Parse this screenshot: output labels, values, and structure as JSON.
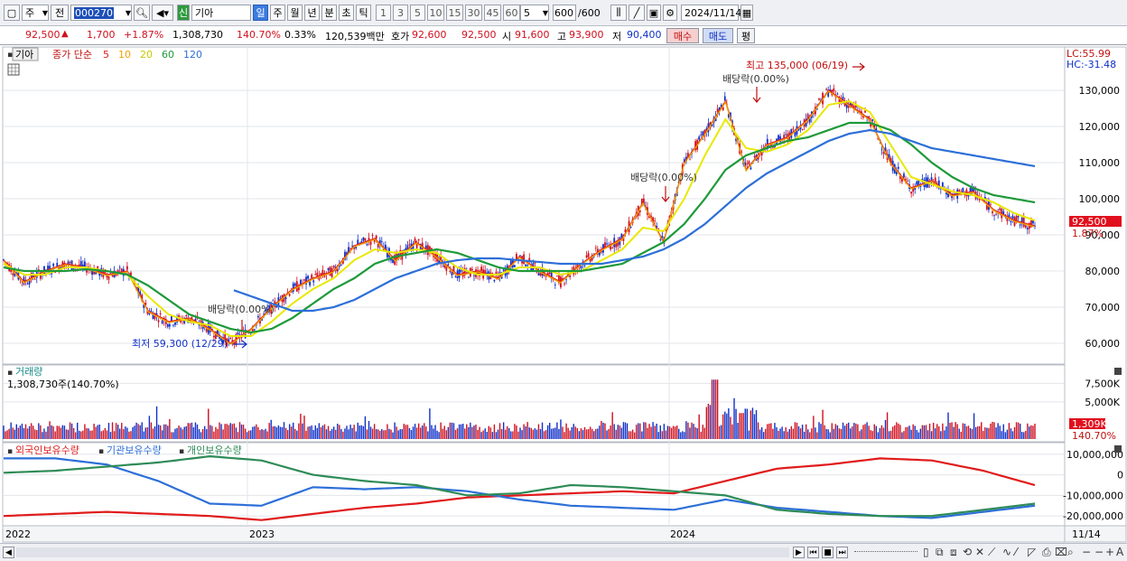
{
  "toolbar": {
    "market": "주",
    "prefix": "전",
    "code": "000270",
    "badge": "신",
    "name": "기아",
    "periods": [
      "일",
      "주",
      "월",
      "년",
      "분",
      "초",
      "틱"
    ],
    "selected_period": "일",
    "intervals": [
      "1",
      "3",
      "5",
      "10",
      "15",
      "30",
      "45",
      "60"
    ],
    "interval_value": "5",
    "count": "600",
    "count_total": "/600",
    "date": "2024/11/14"
  },
  "quote": {
    "price": "92,500",
    "arrow": "▲",
    "change": "1,700",
    "change_pct": "+1.87%",
    "volume": "1,308,730",
    "vol_ratio": "140.70%",
    "turnover": "0.33%",
    "amount": "120,539백만",
    "bid_label": "호가",
    "ask": "92,600",
    "bid": "92,500",
    "open_label": "시",
    "open": "91,600",
    "high_label": "고",
    "high": "93,900",
    "low_label": "저",
    "low": "90,400",
    "buy_label": "매수",
    "sell_label": "매도",
    "eval_label": "평"
  },
  "price_panel": {
    "stock_label": "기아",
    "legend_prefix": "종가 단순",
    "ma_periods": [
      {
        "label": "5",
        "color": "#e01b1b"
      },
      {
        "label": "10",
        "color": "#f0a000"
      },
      {
        "label": "20",
        "color": "#e8e800"
      },
      {
        "label": "60",
        "color": "#1e9a3a"
      },
      {
        "label": "120",
        "color": "#2d6fd8"
      }
    ],
    "lc": "LC:55.99",
    "hc": "HC:-31.48",
    "current_price": "92,500",
    "current_pct": "1.87%",
    "annotations": {
      "high": "최고 135,000 (06/19)",
      "low": "최저 59,300 (12/29)",
      "div1": "배당락(0.00%)",
      "div2": "배당락(0.00%)",
      "div3": "배당락(0.00%)"
    }
  },
  "volume_panel": {
    "title": "거래량",
    "value": "1,308,730주(140.70%)",
    "current": "1,309K",
    "current_pct": "140.70%"
  },
  "holdings_panel": {
    "series": [
      {
        "name": "외국인보유수량",
        "color": "#e01b1b"
      },
      {
        "name": "기관보유수량",
        "color": "#2d6fd8"
      },
      {
        "name": "개인보유수량",
        "color": "#2e8b57"
      }
    ]
  },
  "x_axis": {
    "labels": [
      "2022",
      "2023",
      "2024"
    ],
    "end_label": "11/14"
  },
  "chart_data": [
    {
      "type": "line",
      "title": "",
      "xlabel": "",
      "ylabel": "",
      "ylim": [
        55000,
        140000
      ],
      "yticks": [
        60000,
        70000,
        80000,
        90000,
        100000,
        110000,
        120000,
        130000
      ],
      "ytick_labels": [
        "60,000",
        "70,000",
        "80,000",
        "90,000",
        "100,000",
        "110,000",
        "120,000",
        "130,000"
      ],
      "x": [
        0,
        0.02,
        0.04,
        0.06,
        0.08,
        0.1,
        0.12,
        0.14,
        0.16,
        0.18,
        0.2,
        0.22,
        0.24,
        0.26,
        0.28,
        0.3,
        0.32,
        0.34,
        0.36,
        0.38,
        0.4,
        0.42,
        0.44,
        0.46,
        0.48,
        0.5,
        0.52,
        0.54,
        0.56,
        0.58,
        0.6,
        0.62,
        0.64,
        0.66,
        0.68,
        0.7,
        0.72,
        0.74,
        0.76,
        0.78,
        0.8,
        0.82,
        0.84,
        0.86,
        0.88,
        0.9,
        0.92,
        0.94,
        0.96,
        0.98,
        1.0
      ],
      "series": [
        {
          "name": "종가",
          "values": [
            83000,
            77000,
            80000,
            82000,
            81000,
            79000,
            80000,
            69000,
            66000,
            67000,
            64000,
            60000,
            64000,
            70000,
            75000,
            78000,
            80000,
            87000,
            89000,
            83000,
            88000,
            84000,
            79000,
            80000,
            78000,
            84000,
            80000,
            77000,
            82000,
            86000,
            89000,
            99000,
            88000,
            110000,
            118000,
            127000,
            108000,
            115000,
            117000,
            122000,
            130000,
            126000,
            122000,
            110000,
            103000,
            105000,
            101000,
            102000,
            97000,
            94000,
            92500
          ]
        },
        {
          "name": "20",
          "values": [
            82000,
            79000,
            79000,
            81000,
            81000,
            80000,
            79000,
            73000,
            68000,
            66000,
            65000,
            62000,
            62000,
            66000,
            71000,
            75000,
            78000,
            83000,
            86000,
            85000,
            86000,
            85000,
            81000,
            79000,
            79000,
            81000,
            81000,
            79000,
            80000,
            83000,
            86000,
            92000,
            91000,
            100000,
            112000,
            122000,
            114000,
            113000,
            115000,
            119000,
            126000,
            127000,
            124000,
            115000,
            106000,
            104000,
            102000,
            101000,
            99000,
            96000,
            94000
          ]
        },
        {
          "name": "60",
          "values": [
            81000,
            80000,
            80000,
            80000,
            80500,
            80000,
            79000,
            76000,
            72000,
            68000,
            66000,
            64000,
            63000,
            64000,
            67000,
            71000,
            75000,
            78000,
            82000,
            84000,
            85000,
            86000,
            85000,
            83000,
            81000,
            80000,
            80000,
            80000,
            80000,
            81000,
            82000,
            85000,
            88000,
            93000,
            100000,
            108000,
            112000,
            114000,
            116000,
            117000,
            119000,
            121000,
            121000,
            119000,
            115000,
            110000,
            106000,
            103000,
            101000,
            100000,
            99000
          ]
        },
        {
          "name": "120",
          "values": [
            null,
            null,
            null,
            null,
            null,
            null,
            null,
            null,
            null,
            null,
            null,
            75000,
            73000,
            71000,
            69000,
            69000,
            70000,
            72000,
            75000,
            78000,
            80000,
            82000,
            83000,
            83500,
            83500,
            83000,
            82500,
            82000,
            82000,
            82000,
            83000,
            84000,
            86000,
            89000,
            93000,
            98000,
            103000,
            107000,
            110000,
            113000,
            116000,
            118000,
            119000,
            118000,
            116000,
            114000,
            113000,
            112000,
            111000,
            110000,
            109000
          ]
        }
      ]
    },
    {
      "type": "bar",
      "title": "거래량",
      "yticks": [
        5000,
        7500
      ],
      "ytick_labels": [
        "5,000K",
        "7,500K"
      ],
      "ylim": [
        0,
        9000
      ],
      "unit": "K"
    },
    {
      "type": "line",
      "title": "",
      "ylim": [
        -23000000,
        13000000
      ],
      "yticks": [
        10000000,
        0,
        -10000000,
        -20000000
      ],
      "ytick_labels": [
        "10,000,000",
        "0",
        "-10,000,000",
        "-20,000,000"
      ],
      "x": [
        0,
        0.05,
        0.1,
        0.15,
        0.2,
        0.25,
        0.3,
        0.35,
        0.4,
        0.45,
        0.5,
        0.55,
        0.6,
        0.65,
        0.7,
        0.75,
        0.8,
        0.85,
        0.9,
        0.95,
        1.0
      ],
      "series": [
        {
          "name": "외국인보유수량",
          "values": [
            -20000000,
            -19000000,
            -18000000,
            -19000000,
            -20000000,
            -22000000,
            -19000000,
            -16000000,
            -14000000,
            -11000000,
            -10000000,
            -9000000,
            -8000000,
            -9000000,
            -3000000,
            3000000,
            5000000,
            8000000,
            7000000,
            2000000,
            -5000000
          ]
        },
        {
          "name": "기관보유수량",
          "values": [
            8000000,
            8000000,
            5000000,
            -3000000,
            -14000000,
            -15000000,
            -6000000,
            -7000000,
            -6000000,
            -8000000,
            -12000000,
            -15000000,
            -16000000,
            -17000000,
            -12000000,
            -16000000,
            -18000000,
            -20000000,
            -21000000,
            -18000000,
            -15000000
          ]
        },
        {
          "name": "개인보유수량",
          "values": [
            1000000,
            2000000,
            4000000,
            6000000,
            9000000,
            7000000,
            0,
            -3000000,
            -5000000,
            -10000000,
            -9000000,
            -5000000,
            -6000000,
            -8000000,
            -10000000,
            -17000000,
            -19000000,
            -20000000,
            -20000000,
            -17000000,
            -14000000
          ]
        }
      ]
    }
  ]
}
